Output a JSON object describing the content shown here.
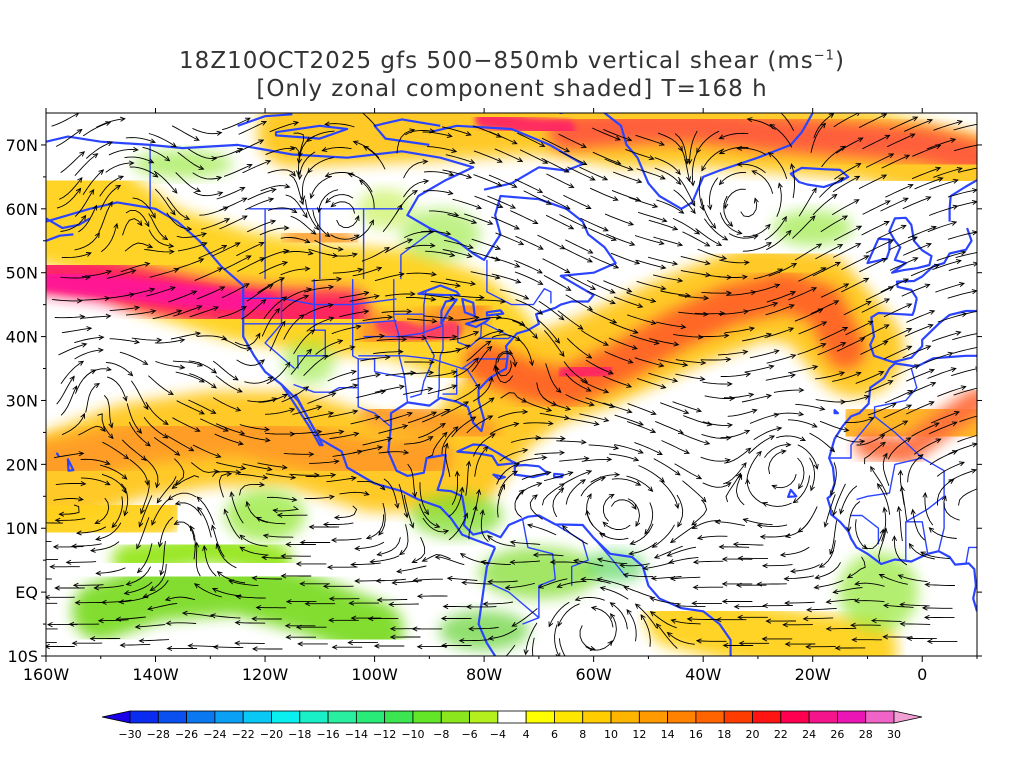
{
  "title": {
    "line1_pre": "18Z10OCT2025 gfs 500−850mb vertical shear (ms",
    "line1_sup": "−1",
    "line1_post": ")",
    "line2": "[Only zonal component shaded] T=168 h"
  },
  "lat_labels": [
    "70N",
    "60N",
    "50N",
    "40N",
    "30N",
    "20N",
    "10N",
    "EQ",
    "10S"
  ],
  "lon_labels": [
    "160W",
    "140W",
    "120W",
    "100W",
    "80W",
    "60W",
    "40W",
    "20W",
    "0"
  ],
  "colorbar": {
    "labels": [
      "−30",
      "−28",
      "−26",
      "−24",
      "−22",
      "−20",
      "−18",
      "−16",
      "−14",
      "−12",
      "−10",
      "−8",
      "−6",
      "−4",
      "4",
      "6",
      "8",
      "10",
      "12",
      "14",
      "16",
      "18",
      "20",
      "22",
      "24",
      "26",
      "28",
      "30"
    ],
    "colors": [
      "#1a00e6",
      "#0a2cf0",
      "#0a50f0",
      "#0a78f0",
      "#0aa0f5",
      "#0ac8f5",
      "#0af0f0",
      "#19f0c8",
      "#28f0a0",
      "#28eb78",
      "#3ce650",
      "#64e628",
      "#8ce61e",
      "#b4f01e",
      "#ffffff",
      "#ffff00",
      "#ffe600",
      "#ffcd00",
      "#ffb400",
      "#ff9b00",
      "#ff8200",
      "#ff6400",
      "#ff3c00",
      "#ff1414",
      "#ff0050",
      "#f5148c",
      "#eb14b4",
      "#f064c8",
      "#f0a0d2"
    ],
    "colors_note": ""
  },
  "map": {
    "lon_range": [
      -160,
      10
    ],
    "lat_range": [
      -10,
      75
    ],
    "coast_color": "#2b44ff",
    "streamline_color": "#000000",
    "bands": [
      {
        "name": "north-pacific-jet",
        "value": 26,
        "color": "#ff1e64"
      },
      {
        "name": "subtropical-jet",
        "value": 16,
        "color": "#ff8c1e"
      },
      {
        "name": "atlantic-jet",
        "value": 18,
        "color": "#ff6428"
      },
      {
        "name": "arctic-jet",
        "value": 20,
        "color": "#ff5a3c"
      },
      {
        "name": "tropical-easterlies",
        "value": -8,
        "color": "#7ddc28"
      }
    ]
  }
}
